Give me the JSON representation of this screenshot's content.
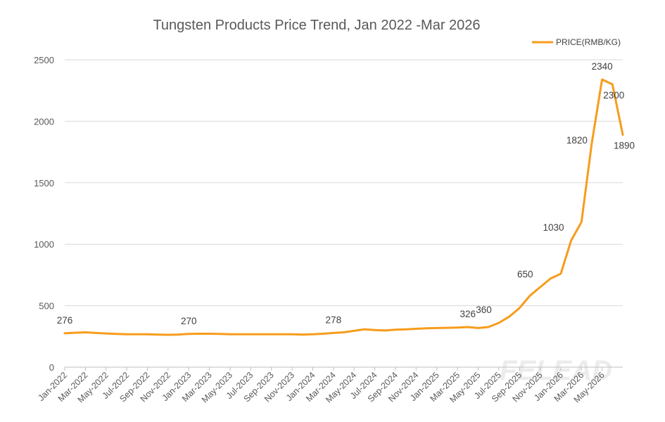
{
  "chart_data": {
    "type": "line",
    "title": "Tungsten Products Price Trend, Jan 2022 -Mar 2026",
    "series": [
      {
        "name": "PRICE(RMB/KG)",
        "color": "#f79c1c",
        "values": [
          276,
          280,
          283,
          278,
          274,
          270,
          268,
          268,
          268,
          265,
          263,
          265,
          270,
          272,
          272,
          270,
          268,
          268,
          268,
          268,
          268,
          268,
          268,
          265,
          268,
          272,
          278,
          283,
          295,
          308,
          302,
          298,
          305,
          308,
          312,
          316,
          318,
          320,
          322,
          326,
          318,
          326,
          360,
          410,
          480,
          580,
          650,
          720,
          760,
          1030,
          1180,
          1820,
          2340,
          2300,
          1890
        ]
      }
    ],
    "x_labels": [
      "Jan-2022",
      "Mar-2022",
      "May-2022",
      "Jul-2022",
      "Sep-2022",
      "Nov-2022",
      "Jan-2023",
      "Mar-2023",
      "May-2023",
      "Jul-2023",
      "Sep-2023",
      "Nov-2023",
      "Jan-2024",
      "Mar-2024",
      "May-2024",
      "Jul-2024",
      "Sep-2024",
      "Nov-2024",
      "Jan-2025",
      "Mar-2025",
      "May-2025",
      "Jul-2025",
      "Sep-2025",
      "Nov-2025",
      "Jan-2026",
      "Mar-2026",
      "May-2026"
    ],
    "y_ticks": [
      0,
      500,
      1000,
      1500,
      2000,
      2500
    ],
    "ylim": [
      0,
      2500
    ],
    "annotations": [
      {
        "index": 0,
        "text": "276",
        "pos": "above"
      },
      {
        "index": 12,
        "text": "270",
        "pos": "above"
      },
      {
        "index": 26,
        "text": "278",
        "pos": "above"
      },
      {
        "index": 39,
        "text": "326",
        "pos": "above"
      },
      {
        "index": 42,
        "text": "360",
        "pos": "aboveleft"
      },
      {
        "index": 46,
        "text": "650",
        "pos": "aboveleft"
      },
      {
        "index": 49,
        "text": "1030",
        "pos": "aboveleft"
      },
      {
        "index": 51,
        "text": "1820",
        "pos": "left"
      },
      {
        "index": 52,
        "text": "2340",
        "pos": "above"
      },
      {
        "index": 53,
        "text": "2300",
        "pos": "below"
      },
      {
        "index": 54,
        "text": "1890",
        "pos": "below"
      }
    ],
    "legend_position": "top-right",
    "grid": true,
    "gridline_color": "#d9d9d9"
  },
  "watermark": "FELEAD"
}
